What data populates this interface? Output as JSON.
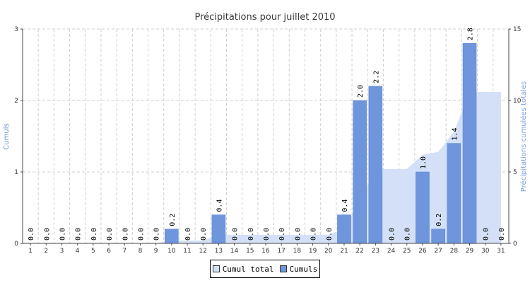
{
  "chart_data": {
    "type": "bar",
    "title": "Précipitations pour juillet 2010",
    "ylabel": "Cumuls",
    "y2label": "Précipitations cumulées totales",
    "categories": [
      "1",
      "2",
      "3",
      "4",
      "5",
      "6",
      "7",
      "8",
      "9",
      "10",
      "11",
      "12",
      "13",
      "14",
      "15",
      "16",
      "17",
      "18",
      "19",
      "20",
      "21",
      "22",
      "23",
      "24",
      "25",
      "26",
      "27",
      "28",
      "29",
      "30",
      "31"
    ],
    "series": [
      {
        "name": "Cumuls",
        "type": "bar",
        "axis": "left",
        "color": "#6f96dc",
        "values": [
          0.0,
          0.0,
          0.0,
          0.0,
          0.0,
          0.0,
          0.0,
          0.0,
          0.0,
          0.2,
          0.0,
          0.0,
          0.4,
          0.0,
          0.0,
          0.0,
          0.0,
          0.0,
          0.0,
          0.0,
          0.4,
          2.0,
          2.2,
          0.0,
          0.0,
          1.0,
          0.2,
          1.4,
          2.8,
          0.0,
          0.0
        ],
        "labels": [
          "0.0",
          "0.0",
          "0.0",
          "0.0",
          "0.0",
          "0.0",
          "0.0",
          "0.0",
          "0.0",
          "0.2",
          "0.0",
          "0.0",
          "0.4",
          "0.0",
          "0.0",
          "0.0",
          "0.0",
          "0.0",
          "0.0",
          "0.0",
          "0.4",
          "2.0",
          "2.2",
          "0.0",
          "0.0",
          "1.0",
          "0.2",
          "1.4",
          "2.8",
          "0.0",
          "0.0"
        ]
      },
      {
        "name": "Cumul total",
        "type": "area",
        "axis": "right",
        "color": "#d3e0f8",
        "values": [
          0.0,
          0.0,
          0.0,
          0.0,
          0.0,
          0.0,
          0.0,
          0.0,
          0.0,
          0.2,
          0.2,
          0.2,
          0.6,
          0.6,
          0.6,
          0.6,
          0.6,
          0.6,
          0.6,
          0.6,
          1.0,
          3.0,
          5.2,
          5.2,
          5.2,
          6.2,
          6.4,
          7.8,
          10.6,
          10.6,
          10.6
        ]
      }
    ],
    "ylim": [
      0,
      3
    ],
    "yticks": [
      "0",
      "1",
      "2",
      "3"
    ],
    "y2lim": [
      0,
      15
    ],
    "y2ticks": [
      "0",
      "5",
      "10",
      "15"
    ],
    "grid": true,
    "legend_position": "bottom"
  },
  "legend": [
    {
      "label": "Cumul total",
      "color": "#d3e0f8"
    },
    {
      "label": "Cumuls",
      "color": "#6f96dc"
    }
  ]
}
